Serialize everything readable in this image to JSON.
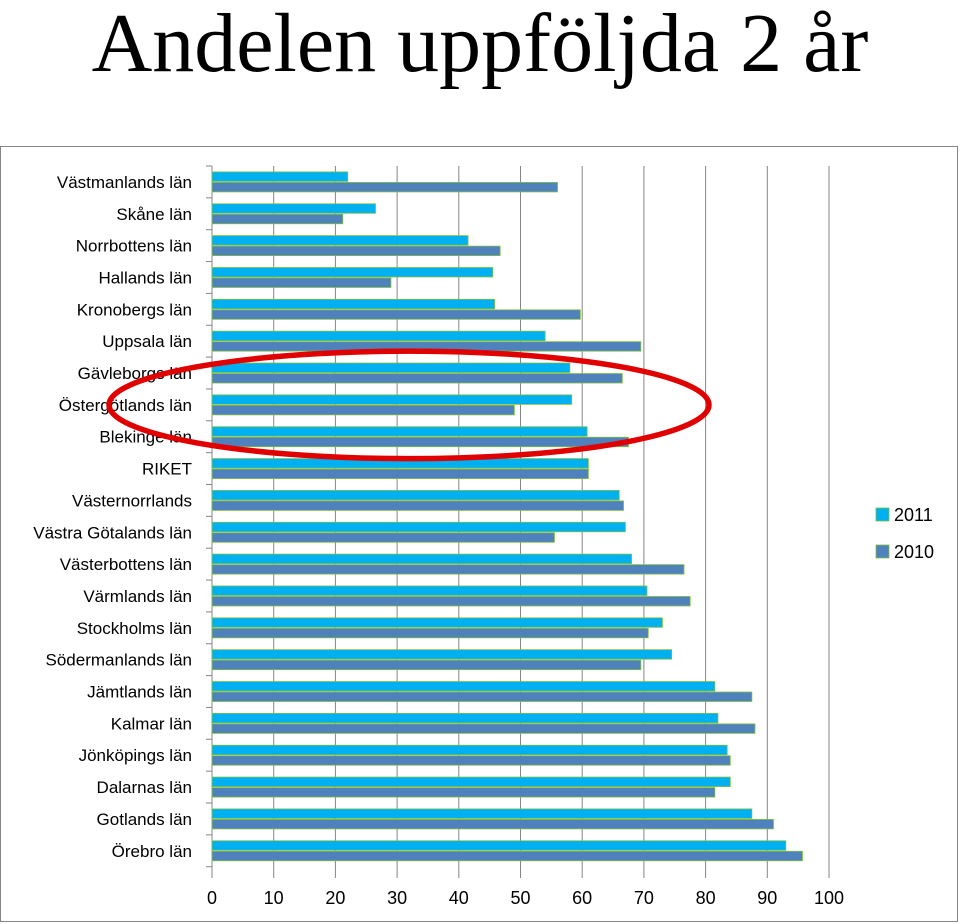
{
  "slide": {
    "title": "Andelen uppföljda 2 år"
  },
  "chart_data": {
    "type": "bar",
    "orientation": "horizontal",
    "title": "",
    "xlabel": "",
    "ylabel": "",
    "xlim": [
      0,
      100
    ],
    "x_ticks": [
      0,
      10,
      20,
      30,
      40,
      50,
      60,
      70,
      80,
      90,
      100
    ],
    "grid": "vertical",
    "legend": "right",
    "categories": [
      "Västmanlands län",
      "Skåne län",
      "Norrbottens län",
      "Hallands län",
      "Kronobergs län",
      "Uppsala län",
      "Gävleborgs län",
      "Östergötlands län",
      "Blekinge län",
      "RIKET",
      "Västernorrlands",
      "Västra Götalands län",
      "Västerbottens län",
      "Värmlands län",
      "Stockholms län",
      "Södermanlands län",
      "Jämtlands län",
      "Kalmar län",
      "Jönköpings län",
      "Dalarnas län",
      "Gotlands län",
      "Örebro län"
    ],
    "series": [
      {
        "name": "2011",
        "color": "#00B0F0",
        "values": [
          22,
          26.5,
          41.5,
          45.5,
          45.8,
          54,
          58,
          58.3,
          60.8,
          61,
          66,
          67,
          68,
          70.5,
          73,
          74.5,
          81.5,
          82,
          83.5,
          84,
          87.5,
          93
        ]
      },
      {
        "name": "2010",
        "color": "#4F81BD",
        "values": [
          56,
          21.2,
          46.7,
          29,
          59.7,
          69.5,
          66.5,
          49,
          67.5,
          61,
          66.7,
          55.5,
          76.5,
          77.5,
          70.7,
          69.5,
          87.5,
          88,
          84,
          81.5,
          91,
          95.7
        ]
      }
    ],
    "annotations": [
      {
        "type": "ellipse",
        "color": "#E00000",
        "encloses": [
          "Gävleborgs län",
          "Östergötlands län",
          "Blekinge län"
        ]
      }
    ]
  }
}
